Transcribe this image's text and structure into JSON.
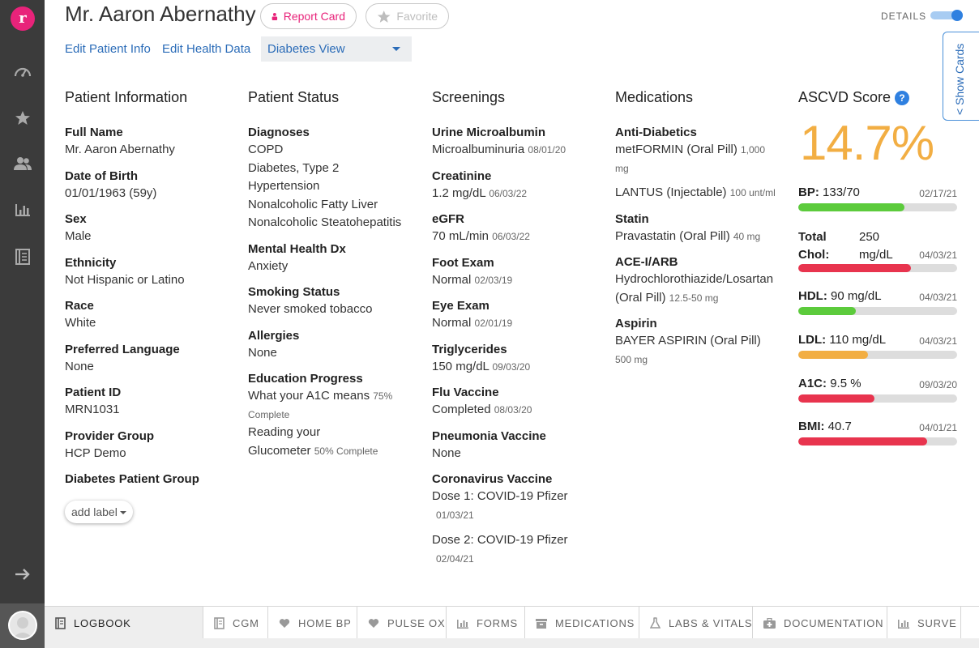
{
  "patient_name": "Mr. Aaron Abernathy",
  "header": {
    "report_card": "Report Card",
    "favorite": "Favorite",
    "details": "DETAILS",
    "details_on": true,
    "edit_patient_info": "Edit Patient Info",
    "edit_health_data": "Edit Health Data",
    "view_selected": "Diabetes View",
    "show_cards": "< Show Cards"
  },
  "patient_information": {
    "title": "Patient Information",
    "fields": [
      {
        "label": "Full Name",
        "value": "Mr. Aaron Abernathy"
      },
      {
        "label": "Date of Birth",
        "value": "01/01/1963 (59y)"
      },
      {
        "label": "Sex",
        "value": "Male"
      },
      {
        "label": "Ethnicity",
        "value": "Not Hispanic or Latino"
      },
      {
        "label": "Race",
        "value": "White"
      },
      {
        "label": "Preferred Language",
        "value": "None"
      },
      {
        "label": "Patient ID",
        "value": "MRN1031"
      },
      {
        "label": "Provider Group",
        "value": "HCP Demo"
      },
      {
        "label": "Diabetes Patient Group",
        "value": ""
      }
    ],
    "add_label": "add label"
  },
  "patient_status": {
    "title": "Patient Status",
    "diagnoses_label": "Diagnoses",
    "diagnoses": [
      "COPD",
      "Diabetes, Type 2",
      "Hypertension",
      "Nonalcoholic Fatty Liver",
      "Nonalcoholic Steatohepatitis"
    ],
    "mental_label": "Mental Health Dx",
    "mental": "Anxiety",
    "smoking_label": "Smoking Status",
    "smoking": "Never smoked tobacco",
    "allergies_label": "Allergies",
    "allergies": "None",
    "education_label": "Education Progress",
    "education": [
      {
        "line1": "What your A1C means",
        "pct": "75%",
        "complete": "Complete"
      },
      {
        "line1": "Reading your",
        "line2": "Glucometer",
        "pct": "50% Complete"
      }
    ]
  },
  "screenings": {
    "title": "Screenings",
    "items": [
      {
        "label": "Urine Microalbumin",
        "value": "Microalbuminuria",
        "date": "08/01/20"
      },
      {
        "label": "Creatinine",
        "value": "1.2 mg/dL",
        "date": "06/03/22"
      },
      {
        "label": "eGFR",
        "value": "70 mL/min",
        "date": "06/03/22"
      },
      {
        "label": "Foot Exam",
        "value": "Normal",
        "date": "02/03/19"
      },
      {
        "label": "Eye Exam",
        "value": "Normal",
        "date": "02/01/19"
      },
      {
        "label": "Triglycerides",
        "value": "150 mg/dL",
        "date": "09/03/20"
      },
      {
        "label": "Flu Vaccine",
        "value": "Completed",
        "date": "08/03/20"
      },
      {
        "label": "Pneumonia Vaccine",
        "value": "None",
        "date": ""
      }
    ],
    "covid_label": "Coronavirus Vaccine",
    "covid": [
      {
        "value": "Dose 1: COVID-19 Pfizer",
        "date": "01/03/21"
      },
      {
        "value": "Dose 2: COVID-19 Pfizer",
        "date": "02/04/21"
      }
    ]
  },
  "medications": {
    "title": "Medications",
    "antidiabetics_label": "Anti-Diabetics",
    "metformin": "metFORMIN (Oral Pill)",
    "metformin_dose_a": "1,000",
    "metformin_dose_b": "mg",
    "lantus": "LANTUS (Injectable)",
    "lantus_dose": "100 unt/ml",
    "statin_label": "Statin",
    "statin": "Pravastatin (Oral Pill)",
    "statin_dose": "40 mg",
    "acei_label": "ACE-I/ARB",
    "acei_a": "Hydrochlorothiazide/Losartan",
    "acei_b": "(Oral Pill)",
    "acei_dose": "12.5-50 mg",
    "aspirin_label": "Aspirin",
    "aspirin": "BAYER ASPIRIN (Oral Pill)",
    "aspirin_dose": "500 mg"
  },
  "ascvd": {
    "title": "ASCVD Score",
    "help": "?",
    "score": "14.7%",
    "score_color": "#f2ae43",
    "metrics": [
      {
        "label": "BP:",
        "value": "133/70",
        "date": "02/17/21",
        "fill": 0.67,
        "color": "#5ccb3c"
      },
      {
        "label": "Total Chol:",
        "value": "250 mg/dL",
        "date": "04/03/21",
        "fill": 0.71,
        "color": "#e8344e"
      },
      {
        "label": "HDL:",
        "value": "90 mg/dL",
        "date": "04/03/21",
        "fill": 0.36,
        "color": "#5ccb3c"
      },
      {
        "label": "LDL:",
        "value": "110 mg/dL",
        "date": "04/03/21",
        "fill": 0.44,
        "color": "#f2ae43"
      },
      {
        "label": "A1C:",
        "value": "9.5 %",
        "date": "09/03/20",
        "fill": 0.48,
        "color": "#e8344e"
      },
      {
        "label": "BMI:",
        "value": "40.7",
        "date": "04/01/21",
        "fill": 0.81,
        "color": "#e8344e"
      }
    ]
  },
  "tabs": [
    {
      "label": "LOGBOOK",
      "icon": "book-icon",
      "active": true
    },
    {
      "label": "CGM",
      "icon": "notebook-icon",
      "active": false
    },
    {
      "label": "HOME BP",
      "icon": "heart-icon",
      "active": false
    },
    {
      "label": "PULSE OX",
      "icon": "heart-icon",
      "active": false
    },
    {
      "label": "FORMS",
      "icon": "bar-chart-icon",
      "active": false
    },
    {
      "label": "MEDICATIONS",
      "icon": "pill-box-icon",
      "active": false
    },
    {
      "label": "LABS & VITALS",
      "icon": "flask-icon",
      "active": false
    },
    {
      "label": "DOCUMENTATION",
      "icon": "medical-kit-icon",
      "active": false
    },
    {
      "label": "SURVE",
      "icon": "bar-chart-icon",
      "active": false
    }
  ],
  "sidebar": {
    "logo": "r",
    "icons": [
      "dashboard-icon",
      "star-icon",
      "users-icon",
      "bar-chart-icon",
      "list-icon",
      "arrow-right-icon"
    ]
  }
}
